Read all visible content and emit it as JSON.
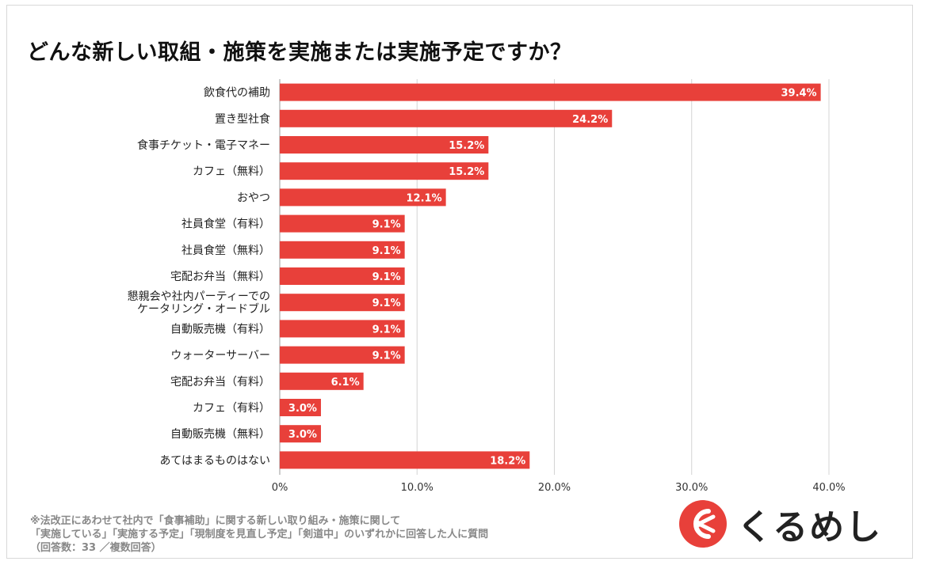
{
  "title": "どんな新しい取組・施策を実施または実施予定ですか？",
  "chart_data": {
    "type": "bar",
    "orientation": "horizontal",
    "categories": [
      "飲食代の補助",
      "置き型社食",
      "食事チケット・電子マネー",
      "カフェ（無料）",
      "おやつ",
      "社員食堂（有料）",
      "社員食堂（無料）",
      "宅配お弁当（無料）",
      [
        "懇親会や社内パーティーでの",
        "ケータリング・オードブル"
      ],
      "自動販売機（有料）",
      "ウォーターサーバー",
      "宅配お弁当（有料）",
      "カフェ（有料）",
      "自動販売機（無料）",
      "あてはまるものはない"
    ],
    "values": [
      39.4,
      24.2,
      15.2,
      15.2,
      12.1,
      9.1,
      9.1,
      9.1,
      9.1,
      9.1,
      9.1,
      6.1,
      3.0,
      3.0,
      18.2
    ],
    "value_labels": [
      "39.4%",
      "24.2%",
      "15.2%",
      "15.2%",
      "12.1%",
      "9.1%",
      "9.1%",
      "9.1%",
      "9.1%",
      "9.1%",
      "9.1%",
      "6.1%",
      "3.0%",
      "3.0%",
      "18.2%"
    ],
    "xlim": [
      0,
      40
    ],
    "xticks": [
      0,
      10,
      20,
      30,
      40
    ],
    "xtick_labels": [
      "0%",
      "10.0%",
      "20.0%",
      "30.0%",
      "40.0%"
    ],
    "grid": true,
    "bar_color": "#e8403a"
  },
  "notes": [
    "※法改正にあわせて社内で「食事補助」に関する新しい取り組み・施策に関して",
    "「実施している」「実施する予定」「現制度を見直し予定」「剣道中」のいずれかに回答した人に質問",
    "（回答数：33 ／複数回答）"
  ],
  "logo": {
    "text": "くるめし",
    "mark_color": "#e8403a"
  }
}
